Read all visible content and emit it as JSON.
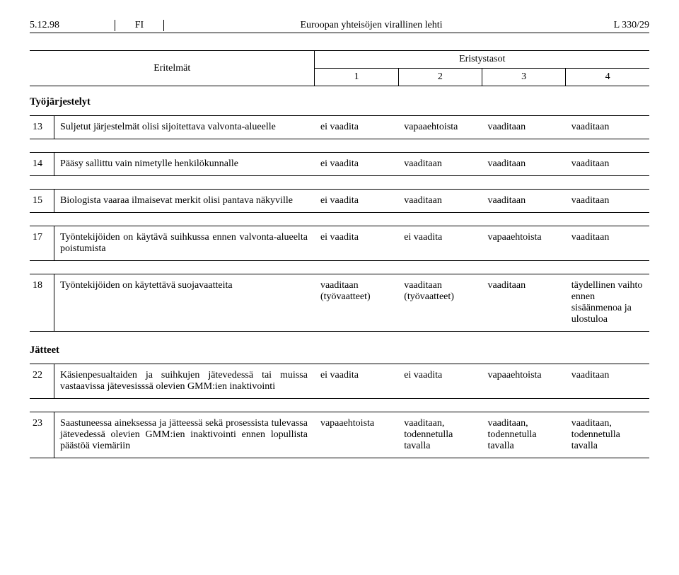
{
  "header": {
    "date": "5.12.98",
    "lang": "FI",
    "title": "Euroopan yhteisöjen virallinen lehti",
    "ref": "L 330/29"
  },
  "topTable": {
    "specsLabel": "Eritelmät",
    "levelsLabel": "Eristystasot",
    "levels": [
      "1",
      "2",
      "3",
      "4"
    ]
  },
  "sections": {
    "work": "Työjärjestelyt",
    "waste": "Jätteet"
  },
  "rows": [
    {
      "num": "13",
      "desc": "Suljetut järjestelmät olisi sijoitettava valvonta-alueelle",
      "v": [
        "ei vaadita",
        "vapaaehtoista",
        "vaaditaan",
        "vaaditaan"
      ]
    },
    {
      "num": "14",
      "desc": "Pääsy sallittu vain nimetylle henkilökunnalle",
      "v": [
        "ei vaadita",
        "vaaditaan",
        "vaaditaan",
        "vaaditaan"
      ]
    },
    {
      "num": "15",
      "desc": "Biologista vaaraa ilmaisevat merkit olisi pantava näkyville",
      "v": [
        "ei vaadita",
        "vaaditaan",
        "vaaditaan",
        "vaaditaan"
      ]
    },
    {
      "num": "17",
      "desc": "Työntekijöiden on käytävä suihkussa ennen valvonta-alueelta poistumista",
      "v": [
        "ei vaadita",
        "ei vaadita",
        "vapaaehtoista",
        "vaaditaan"
      ]
    },
    {
      "num": "18",
      "desc": "Työntekijöiden on käytettävä suojavaatteita",
      "v": [
        "vaaditaan (työvaatteet)",
        "vaaditaan (työvaatteet)",
        "vaaditaan",
        "täydellinen vaihto ennen sisäänmenoa ja ulostuloa"
      ]
    },
    {
      "num": "22",
      "desc": "Käsienpesualtaiden ja suihkujen jätevedessä tai muissa vastaavissa jätevesisssä olevien GMM:ien inaktivointi",
      "v": [
        "ei vaadita",
        "ei vaadita",
        "vapaaehtoista",
        "vaaditaan"
      ]
    },
    {
      "num": "23",
      "desc": "Saastuneessa aineksessa ja jätteessä sekä prosessista tulevassa jätevedessä olevien GMM:ien inaktivointi ennen lopullista päästöä viemäriin",
      "v": [
        "vapaaehtoista",
        "vaaditaan, todennetulla tavalla",
        "vaaditaan, todennetulla tavalla",
        "vaaditaan, todennetulla tavalla"
      ]
    }
  ]
}
